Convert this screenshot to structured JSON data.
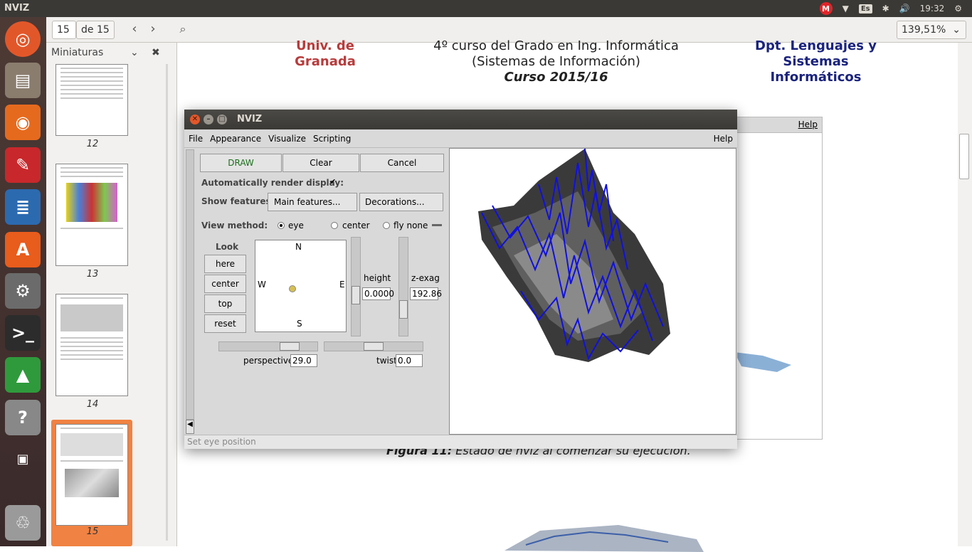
{
  "topbar": {
    "app_title": "NVIZ",
    "mail_badge": "M",
    "lang": "Es",
    "clock": "19:32"
  },
  "toolbar": {
    "page_current": "15",
    "page_total": "de 15",
    "zoom": "139,51%"
  },
  "sidebar": {
    "header": "Miniaturas",
    "thumbnails": [
      {
        "num": "12"
      },
      {
        "num": "13"
      },
      {
        "num": "14"
      },
      {
        "num": "15"
      }
    ]
  },
  "doc": {
    "univ": "Univ. de Granada",
    "curso_line1": "4º curso del Grado en Ing. Informática",
    "curso_line2": "(Sistemas de Información)",
    "curso_line3": "Curso 2015/16",
    "dpt": "Dpt. Lenguajes y Sistemas Informáticos",
    "help": "Help",
    "figure_label": "Figura 11:",
    "figure_caption": "Estado de nviz al comenzar su ejecución."
  },
  "nviz": {
    "title": "NVIZ",
    "menu": [
      "File",
      "Appearance",
      "Visualize",
      "Scripting"
    ],
    "menu_help": "Help",
    "draw": "DRAW",
    "clear": "Clear",
    "cancel": "Cancel",
    "auto_render": "Automatically render display:",
    "show_features": "Show features:",
    "main_features": "Main features...",
    "decorations": "Decorations...",
    "view_method": "View method:",
    "opt_eye": "eye",
    "opt_center": "center",
    "opt_fly": "fly none",
    "look": "Look",
    "here": "here",
    "look_center": "center",
    "top": "top",
    "reset": "reset",
    "compass": {
      "n": "N",
      "s": "S",
      "e": "E",
      "w": "W"
    },
    "height_label": "height",
    "height_value": "0.0000",
    "zexag_label": "z-exag",
    "zexag_value": "192.86",
    "perspective_label": "perspective",
    "perspective_value": "29.0",
    "twist_label": "twist",
    "twist_value": "0.0",
    "status": "Set eye position"
  }
}
